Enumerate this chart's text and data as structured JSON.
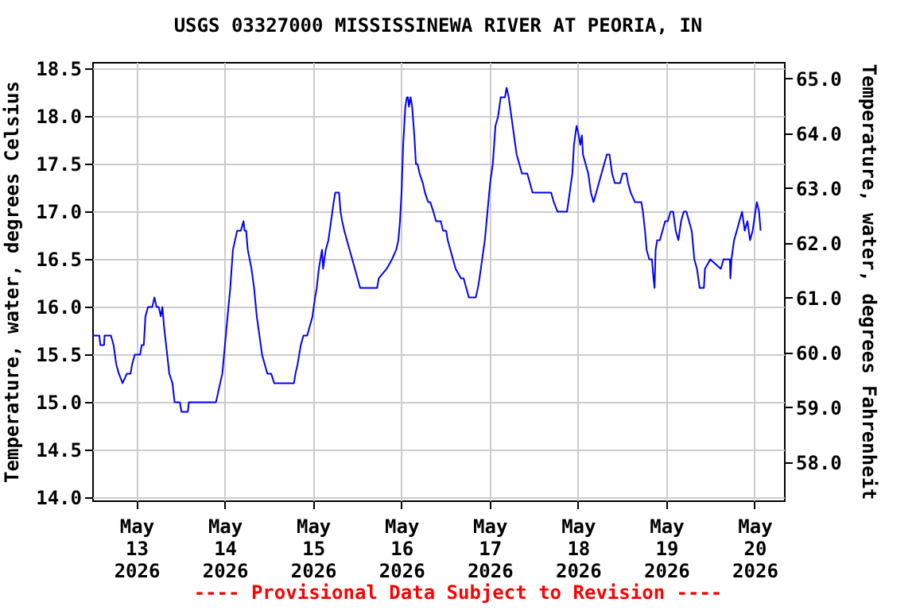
{
  "chart_data": {
    "type": "line",
    "title": "USGS 03327000 MISSISSINEWA RIVER AT PEORIA, IN",
    "ylabel": "Temperature, water, degrees Celsius",
    "y2label": "Temperature, water, degrees Fahrenheit",
    "annotations": [
      "---- Provisional Data Subject to Revision ----"
    ],
    "x": [
      "2026-05-12T12:00",
      "2026-05-12T13:55",
      "2026-05-12T14:12",
      "2026-05-12T15:13",
      "2026-05-12T15:21",
      "2026-05-12T17:05",
      "2026-05-12T17:48",
      "2026-05-12T18:31",
      "2026-05-12T19:14",
      "2026-05-12T20:15",
      "2026-05-12T21:25",
      "2026-05-12T22:25",
      "2026-05-12T22:51",
      "2026-05-12T23:34",
      "2026-05-13T01:01",
      "2026-05-13T01:26",
      "2026-05-13T02:01",
      "2026-05-13T02:27",
      "2026-05-13T03:10",
      "2026-05-13T04:19",
      "2026-05-13T04:54",
      "2026-05-13T05:29",
      "2026-05-13T06:03",
      "2026-05-13T06:38",
      "2026-05-13T07:04",
      "2026-05-13T07:30",
      "2026-05-13T08:22",
      "2026-05-13T08:56",
      "2026-05-13T09:48",
      "2026-05-13T10:23",
      "2026-05-13T11:49",
      "2026-05-13T12:15",
      "2026-05-13T13:59",
      "2026-05-13T14:16",
      "2026-05-13T21:37",
      "2026-05-13T22:12",
      "2026-05-13T22:46",
      "2026-05-13T23:21",
      "2026-05-14T00:04",
      "2026-05-14T00:47",
      "2026-05-14T01:31",
      "2026-05-14T02:14",
      "2026-05-14T02:49",
      "2026-05-14T03:23",
      "2026-05-14T04:23",
      "2026-05-14T05:07",
      "2026-05-14T05:24",
      "2026-05-14T05:50",
      "2026-05-14T06:16",
      "2026-05-14T07:17",
      "2026-05-14T07:59",
      "2026-05-14T08:43",
      "2026-05-14T09:26",
      "2026-05-14T10:09",
      "2026-05-14T10:52",
      "2026-05-14T11:36",
      "2026-05-14T12:37",
      "2026-05-14T13:28",
      "2026-05-14T18:49",
      "2026-05-14T19:14",
      "2026-05-14T19:49",
      "2026-05-14T20:41",
      "2026-05-14T21:24",
      "2026-05-14T22:25",
      "2026-05-14T23:08",
      "2026-05-14T23:51",
      "2026-05-15T00:34",
      "2026-05-15T01:01",
      "2026-05-15T01:35",
      "2026-05-15T02:01",
      "2026-05-15T02:27",
      "2026-05-15T02:44",
      "2026-05-15T03:28",
      "2026-05-15T04:11",
      "2026-05-15T04:54",
      "2026-05-15T05:37",
      "2026-05-15T06:03",
      "2026-05-15T07:04",
      "2026-05-15T07:29",
      "2026-05-15T07:55",
      "2026-05-15T08:30",
      "2026-05-15T09:13",
      "2026-05-15T09:56",
      "2026-05-15T10:40",
      "2026-05-15T11:23",
      "2026-05-15T12:06",
      "2026-05-15T12:49",
      "2026-05-15T17:26",
      "2026-05-15T17:52",
      "2026-05-15T20:01",
      "2026-05-15T21:28",
      "2026-05-15T22:37",
      "2026-05-15T23:12",
      "2026-05-15T23:38",
      "2026-05-16T00:04",
      "2026-05-16T00:30",
      "2026-05-16T01:05",
      "2026-05-16T01:31",
      "2026-05-16T01:48",
      "2026-05-16T02:05",
      "2026-05-16T02:31",
      "2026-05-16T02:57",
      "2026-05-16T03:32",
      "2026-05-16T03:58",
      "2026-05-16T04:23",
      "2026-05-16T04:58",
      "2026-05-16T05:50",
      "2026-05-16T06:25",
      "2026-05-16T07:17",
      "2026-05-16T07:51",
      "2026-05-16T08:43",
      "2026-05-16T09:26",
      "2026-05-16T10:44",
      "2026-05-16T11:19",
      "2026-05-16T12:11",
      "2026-05-16T12:37",
      "2026-05-16T13:20",
      "2026-05-16T14:03",
      "2026-05-16T14:46",
      "2026-05-16T16:13",
      "2026-05-16T16:56",
      "2026-05-16T17:39",
      "2026-05-16T18:22",
      "2026-05-16T20:14",
      "2026-05-16T20:49",
      "2026-05-16T21:15",
      "2026-05-16T21:58",
      "2026-05-16T22:42",
      "2026-05-16T23:25",
      "2026-05-17T00:08",
      "2026-05-17T00:52",
      "2026-05-17T01:35",
      "2026-05-17T02:18",
      "2026-05-17T03:01",
      "2026-05-17T04:10",
      "2026-05-17T04:37",
      "2026-05-17T05:11",
      "2026-05-17T05:54",
      "2026-05-17T06:37",
      "2026-05-17T07:20",
      "2026-05-17T08:04",
      "2026-05-17T08:47",
      "2026-05-17T10:14",
      "2026-05-17T10:57",
      "2026-05-17T11:40",
      "2026-05-17T16:43",
      "2026-05-17T17:26",
      "2026-05-17T18:26",
      "2026-05-17T21:02",
      "2026-05-17T21:46",
      "2026-05-17T22:29",
      "2026-05-17T22:55",
      "2026-05-17T23:38",
      "2026-05-18T00:13",
      "2026-05-18T00:38",
      "2026-05-18T01:04",
      "2026-05-18T01:22",
      "2026-05-18T02:05",
      "2026-05-18T02:48",
      "2026-05-18T03:31",
      "2026-05-18T04:14",
      "2026-05-18T04:58",
      "2026-05-18T05:41",
      "2026-05-18T06:24",
      "2026-05-18T07:08",
      "2026-05-18T07:51",
      "2026-05-18T08:34",
      "2026-05-18T09:17",
      "2026-05-18T10:01",
      "2026-05-18T11:27",
      "2026-05-18T12:10",
      "2026-05-18T13:11",
      "2026-05-18T13:37",
      "2026-05-18T14:20",
      "2026-05-18T15:29",
      "2026-05-18T17:13",
      "2026-05-18T17:39",
      "2026-05-18T18:13",
      "2026-05-18T18:40",
      "2026-05-18T19:23",
      "2026-05-18T20:06",
      "2026-05-18T20:32",
      "2026-05-18T20:49",
      "2026-05-18T21:07",
      "2026-05-18T21:32",
      "2026-05-18T22:16",
      "2026-05-18T22:59",
      "2026-05-18T23:42",
      "2026-05-19T00:25",
      "2026-05-19T01:09",
      "2026-05-19T01:52",
      "2026-05-19T02:35",
      "2026-05-19T03:18",
      "2026-05-19T04:02",
      "2026-05-19T04:45",
      "2026-05-19T05:28",
      "2026-05-19T06:11",
      "2026-05-19T06:55",
      "2026-05-19T07:38",
      "2026-05-19T08:21",
      "2026-05-19T09:04",
      "2026-05-19T10:14",
      "2026-05-19T10:31",
      "2026-05-19T11:58",
      "2026-05-19T14:50",
      "2026-05-19T15:34",
      "2026-05-19T17:17",
      "2026-05-19T17:26",
      "2026-05-19T17:43",
      "2026-05-19T18:26",
      "2026-05-19T19:10",
      "2026-05-19T19:53",
      "2026-05-19T20:36",
      "2026-05-19T21:20",
      "2026-05-19T22:03",
      "2026-05-19T22:46",
      "2026-05-19T23:29",
      "2026-05-20T00:13",
      "2026-05-20T00:38",
      "2026-05-20T01:13",
      "2026-05-20T01:39"
    ],
    "series": [
      {
        "color": "#0000ff",
        "values": [
          15.7,
          15.7,
          15.6,
          15.6,
          15.7,
          15.7,
          15.6,
          15.4,
          15.3,
          15.2,
          15.3,
          15.3,
          15.4,
          15.5,
          15.5,
          15.6,
          15.6,
          15.9,
          16.0,
          16.0,
          16.1,
          16.0,
          16.0,
          15.9,
          16.0,
          15.8,
          15.5,
          15.3,
          15.2,
          15.0,
          15.0,
          14.9,
          14.9,
          15.0,
          15.0,
          15.1,
          15.2,
          15.3,
          15.6,
          15.9,
          16.2,
          16.6,
          16.7,
          16.8,
          16.8,
          16.9,
          16.8,
          16.8,
          16.6,
          16.4,
          16.2,
          15.9,
          15.7,
          15.5,
          15.4,
          15.3,
          15.3,
          15.2,
          15.2,
          15.3,
          15.4,
          15.6,
          15.7,
          15.7,
          15.8,
          15.9,
          16.1,
          16.2,
          16.4,
          16.5,
          16.6,
          16.4,
          16.6,
          16.7,
          16.9,
          17.1,
          17.2,
          17.2,
          17.0,
          16.9,
          16.8,
          16.7,
          16.6,
          16.5,
          16.4,
          16.3,
          16.2,
          16.2,
          16.3,
          16.4,
          16.5,
          16.6,
          16.7,
          16.9,
          17.2,
          17.7,
          18.1,
          18.2,
          18.2,
          18.1,
          18.2,
          18.1,
          17.8,
          17.5,
          17.5,
          17.4,
          17.3,
          17.2,
          17.1,
          17.1,
          17.0,
          16.9,
          16.9,
          16.8,
          16.8,
          16.7,
          16.6,
          16.5,
          16.4,
          16.3,
          16.3,
          16.2,
          16.1,
          16.1,
          16.2,
          16.3,
          16.5,
          16.7,
          17.0,
          17.3,
          17.5,
          17.9,
          18.0,
          18.2,
          18.2,
          18.3,
          18.2,
          18.0,
          17.8,
          17.6,
          17.5,
          17.4,
          17.4,
          17.3,
          17.2,
          17.2,
          17.1,
          17.0,
          17.0,
          17.2,
          17.4,
          17.7,
          17.9,
          17.8,
          17.7,
          17.8,
          17.6,
          17.5,
          17.4,
          17.2,
          17.1,
          17.2,
          17.3,
          17.4,
          17.5,
          17.6,
          17.6,
          17.4,
          17.3,
          17.3,
          17.4,
          17.4,
          17.3,
          17.2,
          17.1,
          17.1,
          17.0,
          16.8,
          16.6,
          16.5,
          16.5,
          16.3,
          16.2,
          16.6,
          16.7,
          16.7,
          16.8,
          16.9,
          16.9,
          17.0,
          17.0,
          16.8,
          16.7,
          16.9,
          17.0,
          17.0,
          16.9,
          16.8,
          16.5,
          16.4,
          16.2,
          16.2,
          16.4,
          16.5,
          16.4,
          16.5,
          16.5,
          16.3,
          16.5,
          16.7,
          16.8,
          16.9,
          17.0,
          16.8,
          16.9,
          16.7,
          16.8,
          17.0,
          17.1,
          17.0,
          16.8
        ]
      }
    ],
    "xlim": [
      "2026-05-12T12:00",
      "2026-05-20T08:00"
    ],
    "xticks": [
      {
        "value": "2026-05-13T00:00",
        "label": "May\n13\n2026"
      },
      {
        "value": "2026-05-14T00:00",
        "label": "May\n14\n2026"
      },
      {
        "value": "2026-05-15T00:00",
        "label": "May\n15\n2026"
      },
      {
        "value": "2026-05-16T00:00",
        "label": "May\n16\n2026"
      },
      {
        "value": "2026-05-17T00:00",
        "label": "May\n17\n2026"
      },
      {
        "value": "2026-05-18T00:00",
        "label": "May\n18\n2026"
      },
      {
        "value": "2026-05-19T00:00",
        "label": "May\n19\n2026"
      },
      {
        "value": "2026-05-20T00:00",
        "label": "May\n20\n2026"
      }
    ],
    "ylim": [
      13.97,
      18.57
    ],
    "yticks": [
      {
        "value": 14,
        "label": "14.0"
      },
      {
        "value": 14.5,
        "label": "14.5"
      },
      {
        "value": 15,
        "label": "15.0"
      },
      {
        "value": 15.5,
        "label": "15.5"
      },
      {
        "value": 16,
        "label": "16.0"
      },
      {
        "value": 16.5,
        "label": "16.5"
      },
      {
        "value": 17,
        "label": "17.0"
      },
      {
        "value": 17.5,
        "label": "17.5"
      },
      {
        "value": 18,
        "label": "18.0"
      },
      {
        "value": 18.5,
        "label": "18.5"
      }
    ],
    "y2lim": [
      57.3,
      65.3
    ],
    "y2ticks": [
      {
        "value": 58,
        "label": "58.0"
      },
      {
        "value": 59,
        "label": "59.0"
      },
      {
        "value": 60,
        "label": "60.0"
      },
      {
        "value": 61,
        "label": "61.0"
      },
      {
        "value": 62,
        "label": "62.0"
      },
      {
        "value": 63,
        "label": "63.0"
      },
      {
        "value": 64,
        "label": "64.0"
      },
      {
        "value": 65,
        "label": "65.0"
      }
    ],
    "grid": true
  }
}
